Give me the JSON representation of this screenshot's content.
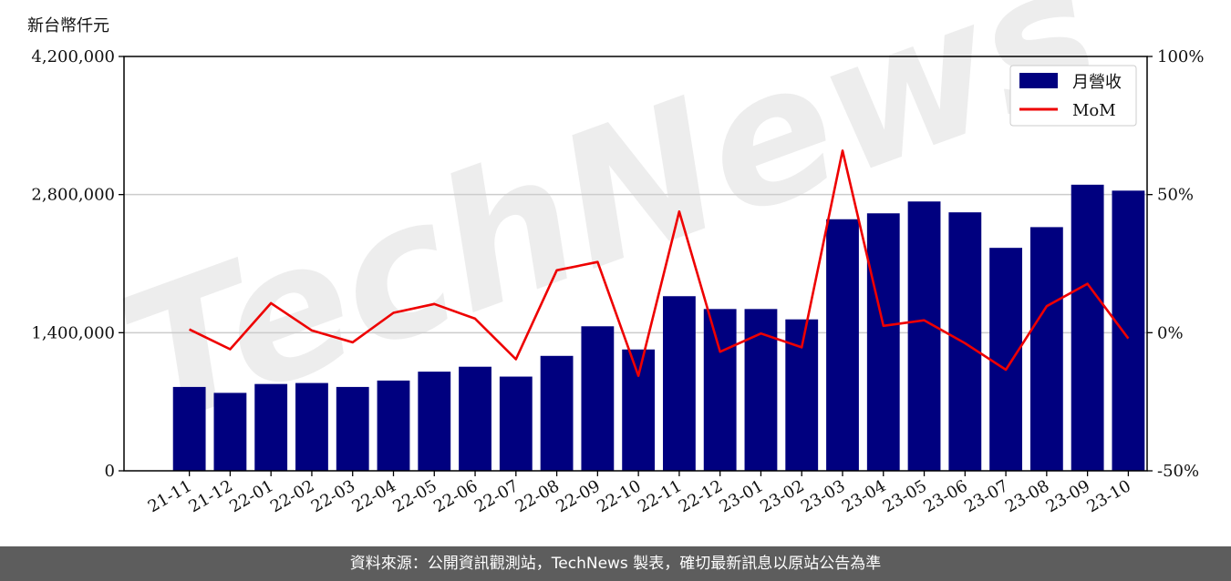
{
  "unit_label": "新台幣仟元",
  "watermark": "TechNews",
  "footer": "資料來源：公開資訊觀測站，TechNews 製表，確切最新訊息以原站公告為準",
  "colors": {
    "bar": "#00007f",
    "line": "#ee0000",
    "grid": "#cccccc",
    "watermark": "rgba(200,200,200,0.35)"
  },
  "chart_data": {
    "type": "bar",
    "categories": [
      "21-11",
      "21-12",
      "22-01",
      "22-02",
      "22-03",
      "22-04",
      "22-05",
      "22-06",
      "22-07",
      "22-08",
      "22-09",
      "22-10",
      "22-11",
      "22-12",
      "23-01",
      "23-02",
      "23-03",
      "23-04",
      "23-05",
      "23-06",
      "23-07",
      "23-08",
      "23-09",
      "23-10"
    ],
    "series": [
      {
        "name": "月營收",
        "type": "bar",
        "axis": "left",
        "values": [
          850000,
          790000,
          880000,
          890000,
          850000,
          915000,
          1005000,
          1055000,
          955000,
          1165000,
          1465000,
          1230000,
          1770000,
          1640000,
          1640000,
          1535000,
          2550000,
          2610000,
          2730000,
          2620000,
          2260000,
          2470000,
          2900000,
          2840000
        ]
      },
      {
        "name": "MoM",
        "type": "line",
        "axis": "right",
        "values": [
          1.2,
          -6,
          10.7,
          0.8,
          -3.5,
          7.2,
          10.4,
          5.1,
          -9.6,
          22.6,
          25.6,
          -15.6,
          43.9,
          -6.9,
          -0.3,
          -5.3,
          65.9,
          2.5,
          4.5,
          -3.8,
          -13.4,
          9.6,
          17.7,
          -2.1
        ]
      }
    ],
    "y_left": {
      "ylim": [
        0,
        4200000
      ],
      "ticks": [
        "0",
        "1,400,000",
        "2,800,000",
        "4,200,000"
      ],
      "tick_values": [
        0,
        1400000,
        2800000,
        4200000
      ]
    },
    "y_right": {
      "ylim": [
        -50,
        100
      ],
      "ticks": [
        "-50%",
        "0%",
        "50%",
        "100%"
      ],
      "tick_values": [
        -50,
        0,
        50,
        100
      ]
    },
    "grid": "horizontal",
    "legend": "top-right"
  }
}
